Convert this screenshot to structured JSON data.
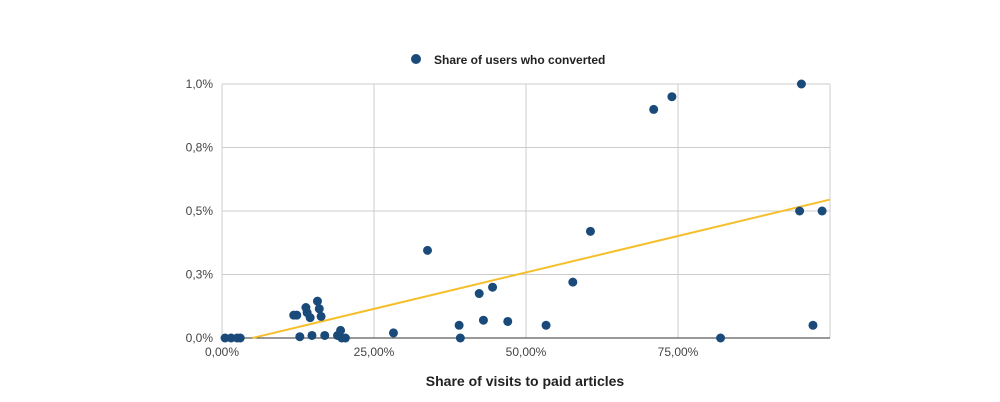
{
  "chart_data": {
    "type": "scatter",
    "title": "",
    "xlabel": "Share of visits to paid articles",
    "ylabel": "",
    "xlim": [
      0,
      100
    ],
    "ylim": [
      0,
      1.0
    ],
    "x_ticks": [
      {
        "value": 0,
        "label": "0,00%"
      },
      {
        "value": 25,
        "label": "25,00%"
      },
      {
        "value": 50,
        "label": "50,00%"
      },
      {
        "value": 75,
        "label": "75,00%"
      }
    ],
    "y_ticks": [
      {
        "value": 0,
        "label": "0,0%"
      },
      {
        "value": 0.25,
        "label": "0,3%"
      },
      {
        "value": 0.5,
        "label": "0,5%"
      },
      {
        "value": 0.75,
        "label": "0,8%"
      },
      {
        "value": 1.0,
        "label": "1,0%"
      }
    ],
    "grid": true,
    "legend_position": "top-center",
    "series": [
      {
        "name": "Share of users who converted",
        "color": "#1a4a7a",
        "points": [
          {
            "x": 0.5,
            "y": 0.0
          },
          {
            "x": 1.5,
            "y": 0.0
          },
          {
            "x": 2.5,
            "y": 0.0
          },
          {
            "x": 3.0,
            "y": 0.0
          },
          {
            "x": 11.8,
            "y": 0.09
          },
          {
            "x": 12.3,
            "y": 0.09
          },
          {
            "x": 12.8,
            "y": 0.005
          },
          {
            "x": 13.8,
            "y": 0.12
          },
          {
            "x": 14.0,
            "y": 0.1
          },
          {
            "x": 14.5,
            "y": 0.08
          },
          {
            "x": 14.8,
            "y": 0.01
          },
          {
            "x": 15.7,
            "y": 0.145
          },
          {
            "x": 16.0,
            "y": 0.115
          },
          {
            "x": 16.3,
            "y": 0.085
          },
          {
            "x": 16.9,
            "y": 0.01
          },
          {
            "x": 19.0,
            "y": 0.01
          },
          {
            "x": 19.5,
            "y": 0.03
          },
          {
            "x": 19.7,
            "y": 0.0
          },
          {
            "x": 20.3,
            "y": 0.0
          },
          {
            "x": 28.2,
            "y": 0.02
          },
          {
            "x": 33.8,
            "y": 0.345
          },
          {
            "x": 39.0,
            "y": 0.05
          },
          {
            "x": 39.2,
            "y": 0.0
          },
          {
            "x": 42.3,
            "y": 0.175
          },
          {
            "x": 43.0,
            "y": 0.07
          },
          {
            "x": 44.5,
            "y": 0.2
          },
          {
            "x": 47.0,
            "y": 0.065
          },
          {
            "x": 53.3,
            "y": 0.05
          },
          {
            "x": 57.7,
            "y": 0.22
          },
          {
            "x": 60.6,
            "y": 0.42
          },
          {
            "x": 71.0,
            "y": 0.9
          },
          {
            "x": 74.0,
            "y": 0.95
          },
          {
            "x": 82.0,
            "y": 0.0
          },
          {
            "x": 95.3,
            "y": 1.0
          },
          {
            "x": 95.0,
            "y": 0.5
          },
          {
            "x": 97.2,
            "y": 0.05
          },
          {
            "x": 98.7,
            "y": 0.5
          }
        ]
      }
    ],
    "trendline": {
      "color": "#f5bf2a",
      "points": [
        {
          "x": 5.0,
          "y": 0.0
        },
        {
          "x": 100,
          "y": 0.545
        }
      ]
    }
  }
}
